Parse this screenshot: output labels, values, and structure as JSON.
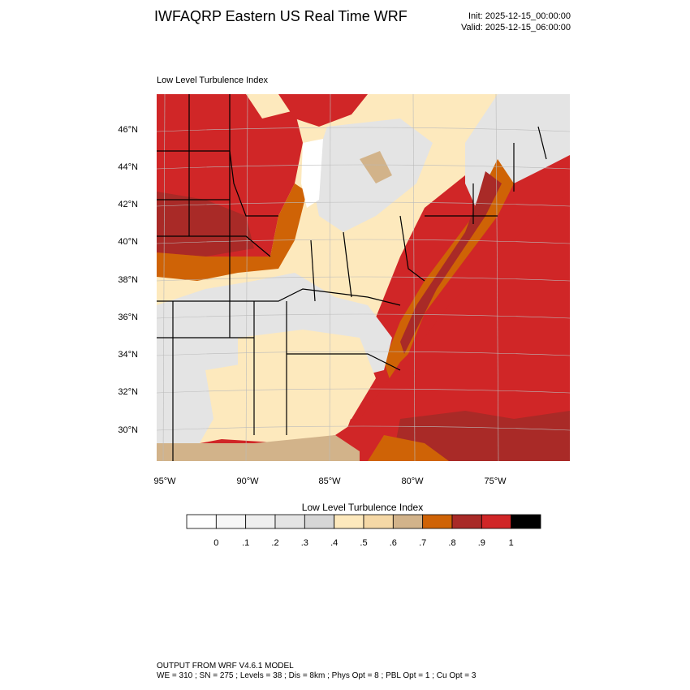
{
  "header": {
    "title": "IWFAQRP Eastern US Real Time WRF",
    "init": "Init: 2025-12-15_00:00:00",
    "valid": "Valid: 2025-12-15_06:00:00"
  },
  "map": {
    "subtitle": "Low Level Turbulence Index",
    "lat_labels": [
      "46°N",
      "44°N",
      "42°N",
      "40°N",
      "38°N",
      "36°N",
      "34°N",
      "32°N",
      "30°N"
    ],
    "lon_labels": [
      "95°W",
      "90°W",
      "85°W",
      "80°W",
      "75°W"
    ]
  },
  "colorbar": {
    "title": "Low Level Turbulence Index",
    "labels": [
      "0",
      ".1",
      ".2",
      ".3",
      ".4",
      ".5",
      ".6",
      ".7",
      ".8",
      ".9",
      "1"
    ],
    "colors": [
      "#ffffff",
      "#f7f7f7",
      "#efefef",
      "#e4e4e4",
      "#d6d6d6",
      "#fde9bd",
      "#f5d8a6",
      "#d2b38a",
      "#cf6306",
      "#a92a27",
      "#d02627",
      "#000000"
    ]
  },
  "footer": {
    "line1": "OUTPUT FROM WRF V4.6.1 MODEL",
    "line2": "WE = 310 ; SN = 275 ; Levels = 38 ; Dis = 8km ; Phys Opt = 8 ; PBL Opt = 1 ; Cu Opt = 3"
  }
}
